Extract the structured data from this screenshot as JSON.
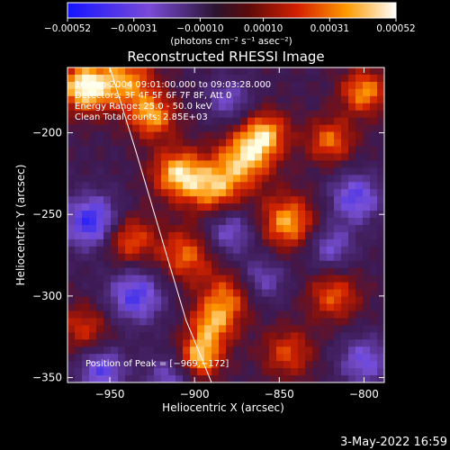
{
  "chart_data": {
    "type": "heatmap",
    "title": "Reconstructed RHESSI Image",
    "xlabel": "Heliocentric X (arcsec)",
    "ylabel": "Heliocentric Y (arcsec)",
    "xlim": [
      -975,
      -788
    ],
    "ylim": [
      -353,
      -160
    ],
    "xticks": [
      -950,
      -900,
      -850,
      -800
    ],
    "xtick_labels": [
      "−950",
      "−900",
      "−850",
      "−800"
    ],
    "yticks": [
      -200,
      -250,
      -300,
      -350
    ],
    "ytick_labels": [
      "−200",
      "−250",
      "−300",
      "−350"
    ],
    "colorbar": {
      "min": -0.00052,
      "max": 0.00052,
      "tick_values": [
        -0.00052,
        -0.00031,
        -0.0001,
        0.0001,
        0.00031,
        0.00052
      ],
      "tick_labels": [
        "−0.00052",
        "−0.00031",
        "−0.00010",
        "0.00010",
        "0.00031",
        "0.00052"
      ],
      "units_label": "(photons cm⁻² s⁻¹ asec⁻²)"
    },
    "annotations": [
      "16-Sep-2004 09:01:00.000 to 09:03:28.000",
      "Detectors: 3F 4F 5F 6F 7F 8F, Att 0",
      "Energy Range: 25.0 - 50.0 keV",
      "Clean    Total counts: 2.85E+03"
    ],
    "peak_label": "Position of Peak = [−969,−172]",
    "peak_position": [
      -969,
      -172
    ],
    "limb_curve": {
      "x": [
        -950,
        -944,
        -935,
        -925,
        -915,
        -905,
        -897,
        -890
      ],
      "y": [
        -160,
        -180,
        -210,
        -245,
        -280,
        -315,
        -335,
        -353
      ]
    },
    "blobs": [
      {
        "x": -965,
        "y": -172,
        "v": 1.0,
        "s": 11
      },
      {
        "x": -940,
        "y": -168,
        "v": 0.7,
        "s": 12
      },
      {
        "x": -925,
        "y": -190,
        "v": 0.75,
        "s": 10
      },
      {
        "x": -910,
        "y": -225,
        "v": 0.85,
        "s": 11
      },
      {
        "x": -888,
        "y": -235,
        "v": 0.75,
        "s": 12
      },
      {
        "x": -870,
        "y": -215,
        "v": 0.8,
        "s": 12
      },
      {
        "x": -858,
        "y": -200,
        "v": 0.7,
        "s": 10
      },
      {
        "x": -845,
        "y": -255,
        "v": 0.8,
        "s": 12
      },
      {
        "x": -820,
        "y": -205,
        "v": 0.65,
        "s": 10
      },
      {
        "x": -800,
        "y": -175,
        "v": 0.75,
        "s": 10
      },
      {
        "x": -940,
        "y": -265,
        "v": 0.7,
        "s": 11
      },
      {
        "x": -905,
        "y": -275,
        "v": 0.65,
        "s": 12
      },
      {
        "x": -880,
        "y": -300,
        "v": 0.6,
        "s": 11
      },
      {
        "x": -890,
        "y": -318,
        "v": 0.7,
        "s": 10
      },
      {
        "x": -897,
        "y": -338,
        "v": 0.85,
        "s": 9
      },
      {
        "x": -818,
        "y": -300,
        "v": 0.6,
        "s": 11
      },
      {
        "x": -845,
        "y": -335,
        "v": 0.55,
        "s": 11
      },
      {
        "x": -965,
        "y": -320,
        "v": 0.5,
        "s": 11
      },
      {
        "x": -960,
        "y": -255,
        "v": -0.9,
        "s": 12
      },
      {
        "x": -935,
        "y": -300,
        "v": -0.75,
        "s": 12
      },
      {
        "x": -955,
        "y": -345,
        "v": -0.7,
        "s": 10
      },
      {
        "x": -880,
        "y": -260,
        "v": -0.6,
        "s": 11
      },
      {
        "x": -860,
        "y": -290,
        "v": -0.5,
        "s": 10
      },
      {
        "x": -805,
        "y": -240,
        "v": -0.7,
        "s": 11
      },
      {
        "x": -820,
        "y": -270,
        "v": -0.55,
        "s": 10
      },
      {
        "x": -880,
        "y": -180,
        "v": -0.5,
        "s": 10
      },
      {
        "x": -800,
        "y": -340,
        "v": -0.6,
        "s": 11
      },
      {
        "x": -915,
        "y": -350,
        "v": -0.5,
        "s": 10
      }
    ]
  },
  "footer": {
    "timestamp": "3-May-2022 16:59"
  }
}
